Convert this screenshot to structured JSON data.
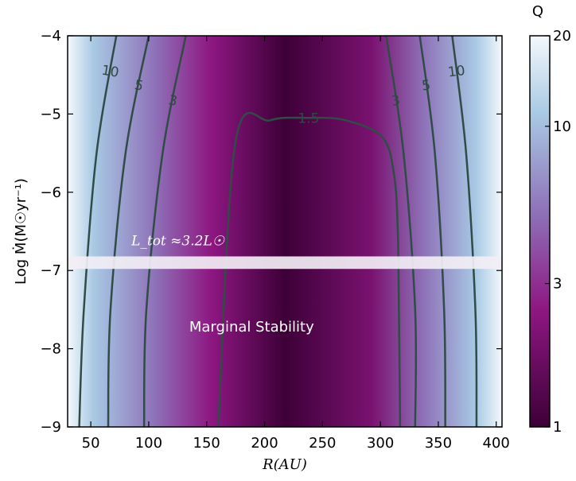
{
  "chart_data": {
    "type": "heatmap",
    "xlabel": "R(AU)",
    "ylabel": "Log Ṁ(M☉yr⁻¹)",
    "xlim": [
      30,
      405
    ],
    "ylim": [
      -9,
      -4
    ],
    "x_ticks": [
      50,
      100,
      150,
      200,
      250,
      300,
      350,
      400
    ],
    "y_ticks": [
      -4,
      -5,
      -6,
      -7,
      -8,
      -9
    ],
    "colorbar": {
      "title": "Q",
      "scale": "log",
      "range": [
        1,
        20
      ],
      "ticks": [
        20,
        10,
        3,
        1
      ],
      "colormap": [
        "#3d0038",
        "#8e1782",
        "#8e72b8",
        "#a8c9e4",
        "#f4f8fc"
      ]
    },
    "contours": [
      {
        "level": 10,
        "label": "10",
        "left_R": [
          72,
          55,
          44,
          40
        ],
        "right_R": [
          362,
          374,
          382,
          383
        ],
        "logMdot": [
          -4,
          -5.5,
          -7.5,
          -9
        ]
      },
      {
        "level": 5,
        "label": "5",
        "left_R": [
          100,
          80,
          67,
          65
        ],
        "right_R": [
          334,
          347,
          355,
          356
        ],
        "logMdot": [
          -4,
          -5.5,
          -7.5,
          -9
        ]
      },
      {
        "level": 3,
        "label": "3",
        "left_R": [
          132,
          112,
          98,
          96
        ],
        "right_R": [
          305,
          320,
          330,
          330
        ],
        "logMdot": [
          -4,
          -5.5,
          -7.5,
          -9
        ]
      },
      {
        "level": 1.5,
        "label": "1.5",
        "R": [
          160,
          175,
          205,
          238,
          270,
          302,
          312,
          315,
          316,
          317
        ],
        "logMdot": [
          -9,
          -5.35,
          -5.08,
          -5.05,
          -5.08,
          -5.3,
          -5.8,
          -6.5,
          -7.5,
          -9
        ]
      }
    ],
    "band": {
      "logMdot": [
        -6.82,
        -6.98
      ],
      "color": "#f2eef4"
    },
    "annotations": [
      {
        "text": "L_tot ≈3.2L☉",
        "R": 85,
        "logMdot": -6.68
      },
      {
        "text": "Marginal Stability",
        "R": 135,
        "logMdot": -7.78
      }
    ]
  }
}
